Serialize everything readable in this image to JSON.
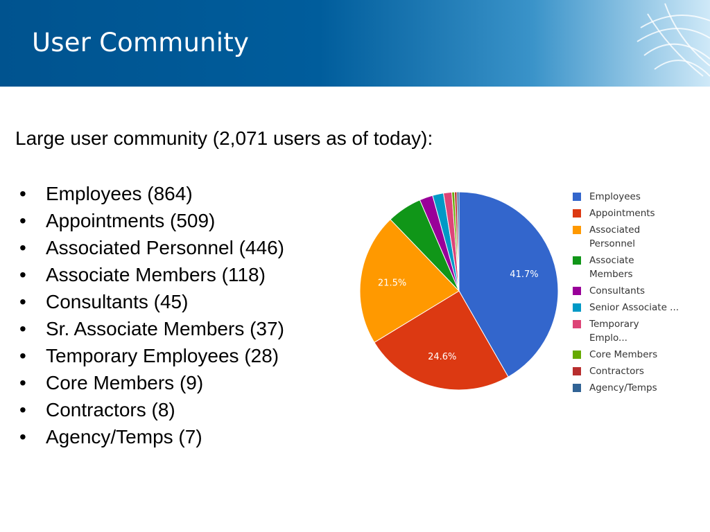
{
  "header": {
    "title": "User Community"
  },
  "intro": "Large user community (2,071 users as of today):",
  "bullets": [
    "Employees (864)",
    "Appointments (509)",
    "Associated Personnel (446)",
    "Associate Members (118)",
    "Consultants (45)",
    "Sr. Associate Members (37)",
    "Temporary Employees (28)",
    "Core Members (9)",
    "Contractors (8)",
    "Agency/Temps (7)"
  ],
  "chart_data": {
    "type": "pie",
    "categories": [
      "Employees",
      "Appointments",
      "Associated Personnel",
      "Associate Members",
      "Consultants",
      "Senior Associate ...",
      "Temporary Emplo...",
      "Core Members",
      "Contractors",
      "Agency/Temps"
    ],
    "values": [
      864,
      509,
      446,
      118,
      45,
      37,
      28,
      9,
      8,
      7
    ],
    "data_labels": [
      "41.7%",
      "24.6%",
      "21.5%",
      "",
      "",
      "",
      "",
      "",
      "",
      ""
    ],
    "colors": [
      "#3366cc",
      "#dc3912",
      "#ff9900",
      "#109618",
      "#990099",
      "#0099c6",
      "#dd4477",
      "#66aa00",
      "#b82e2e",
      "#316395"
    ],
    "legend_placement": "right"
  }
}
